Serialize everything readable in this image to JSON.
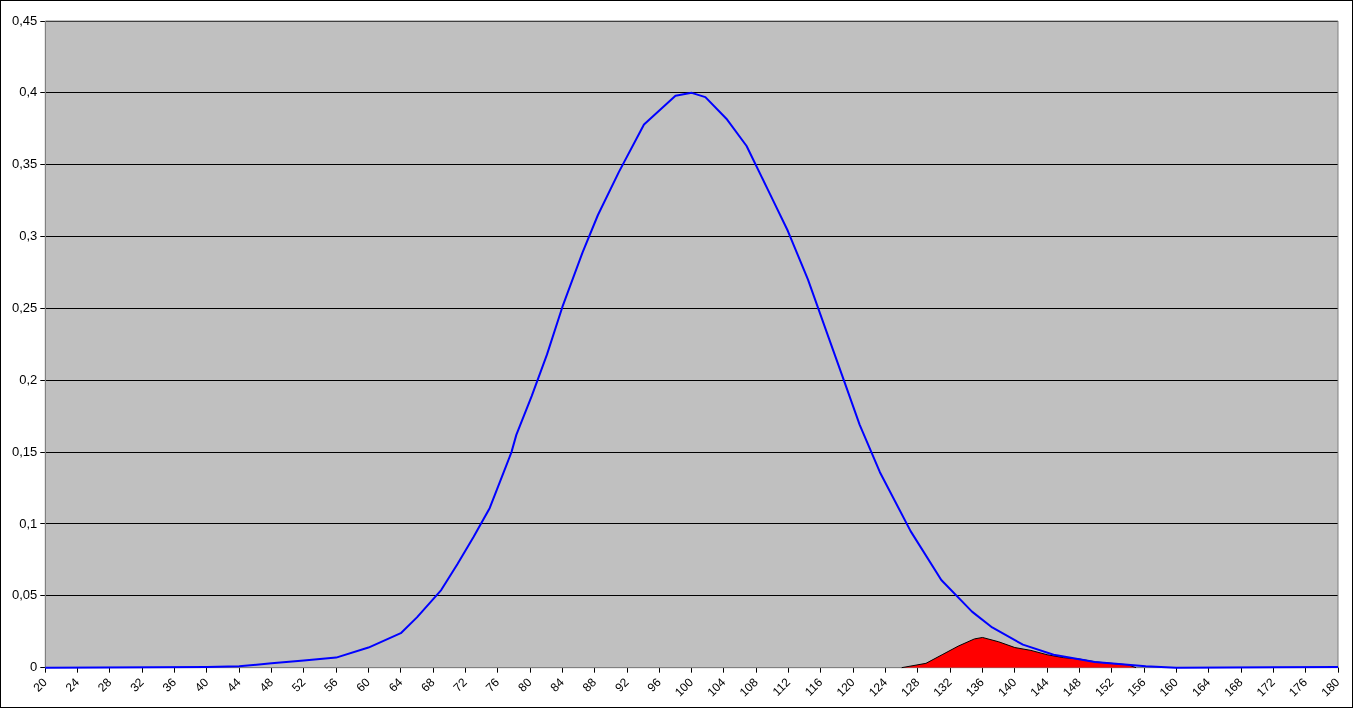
{
  "chart_data": {
    "type": "line",
    "legend": false,
    "grid": "y",
    "marker": "none",
    "xlim": [
      20,
      180
    ],
    "xticks": [
      20,
      24,
      28,
      32,
      36,
      40,
      44,
      48,
      52,
      56,
      60,
      64,
      68,
      72,
      76,
      80,
      84,
      88,
      92,
      96,
      100,
      104,
      108,
      112,
      116,
      120,
      124,
      128,
      132,
      136,
      140,
      144,
      148,
      152,
      156,
      160,
      164,
      168,
      172,
      176,
      180
    ],
    "ylim": [
      0,
      0.45
    ],
    "yticks": [
      0,
      {
        "value": 0.05,
        "label": "0,05"
      },
      {
        "value": 0.1,
        "label": "0,1"
      },
      {
        "value": 0.15,
        "label": "0,15"
      },
      {
        "value": 0.2,
        "label": "0,2"
      },
      {
        "value": 0.25,
        "label": "0,25"
      },
      {
        "value": 0.3,
        "label": "0,3"
      },
      {
        "value": 0.35,
        "label": "0,35"
      },
      {
        "value": 0.4,
        "label": "0,4"
      },
      {
        "value": 0.45,
        "label": "0,45"
      }
    ],
    "series": [
      {
        "type": "line",
        "color": "#0000ff",
        "x": [
          20,
          40,
          44,
          48,
          52,
          56,
          60,
          64,
          66,
          69,
          71,
          73,
          75,
          77.7,
          78.3,
          80.2,
          82.1,
          84,
          86.5,
          88.4,
          91,
          94.1,
          98,
          100,
          101.7,
          104.3,
          106.8,
          109.4,
          111.9,
          114.4,
          117,
          118.9,
          120.8,
          123.3,
          127.1,
          130.9,
          134.7,
          137.2,
          141,
          144.8,
          149.9,
          156.2,
          160,
          180
        ],
        "values": [
          0,
          0.0005,
          0.001,
          0.003,
          0.005,
          0.007,
          0.014,
          0.024,
          0.035,
          0.054,
          0.072,
          0.091,
          0.111,
          0.15,
          0.162,
          0.189,
          0.218,
          0.251,
          0.289,
          0.315,
          0.345,
          0.378,
          0.398,
          0.4,
          0.397,
          0.382,
          0.363,
          0.333,
          0.304,
          0.27,
          0.229,
          0.199,
          0.169,
          0.136,
          0.095,
          0.061,
          0.039,
          0.028,
          0.016,
          0.009,
          0.004,
          0.001,
          0,
          0.0005
        ]
      },
      {
        "type": "area",
        "color": "#ff0000",
        "x": [
          126,
          129,
          131,
          133,
          135,
          136,
          138,
          140,
          142,
          144,
          146,
          148,
          150,
          152,
          154,
          155
        ],
        "values": [
          0,
          0.003,
          0.009,
          0.015,
          0.02,
          0.021,
          0.018,
          0.014,
          0.012,
          0.009,
          0.007,
          0.006,
          0.004,
          0.003,
          0.002,
          0
        ]
      }
    ]
  }
}
